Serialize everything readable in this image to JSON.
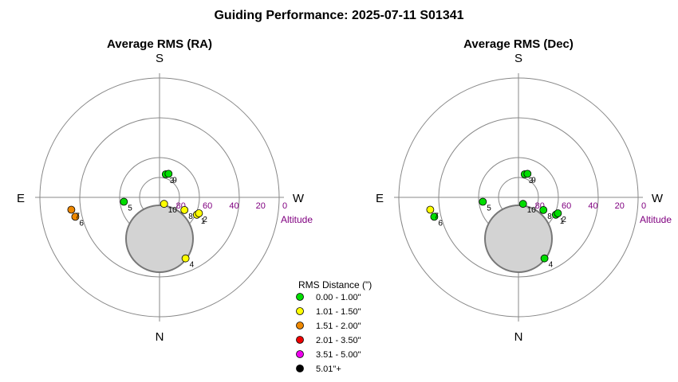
{
  "title": "Guiding Performance: 2025-07-11 S01341",
  "directions": {
    "south": "S",
    "north": "N",
    "east": "E",
    "west": "W"
  },
  "altitude_label": "Altitude",
  "altitude_ticks": [
    "80",
    "60",
    "40",
    "20",
    "0"
  ],
  "legend": {
    "title": "RMS Distance (\")",
    "entries": [
      {
        "label": "0.00 - 1.00\"",
        "color": "#00dd00"
      },
      {
        "label": "1.01 - 1.50\"",
        "color": "#ffff00"
      },
      {
        "label": "1.51 - 2.00\"",
        "color": "#ee8800"
      },
      {
        "label": "2.01 - 3.50\"",
        "color": "#ee0000"
      },
      {
        "label": "3.51 - 5.00\"",
        "color": "#ee00ee"
      },
      {
        "label": "5.01\"+",
        "color": "#000000"
      }
    ]
  },
  "chart_data": [
    {
      "type": "scatter",
      "title": "Average RMS (RA)",
      "coordinate_system": "polar (azimuth, altitude)",
      "radial_axis": {
        "label": "Altitude",
        "range": [
          90,
          0
        ],
        "ticks": [
          80,
          60,
          40,
          20,
          0
        ]
      },
      "points": [
        {
          "label": "1",
          "alt": 59,
          "az": 245,
          "color": "#ffff00"
        },
        {
          "label": "2",
          "alt": 58,
          "az": 248,
          "color": "#ffff00"
        },
        {
          "label": "3",
          "alt": 72,
          "az": 345,
          "color": "#00dd00"
        },
        {
          "label": "4",
          "alt": 40,
          "az": 203,
          "color": "#ffff00"
        },
        {
          "label": "5",
          "alt": 63,
          "az": 97,
          "color": "#00dd00"
        },
        {
          "label": "6",
          "alt": 25,
          "az": 103,
          "color": "#ee8800"
        },
        {
          "label": "7",
          "alt": 23,
          "az": 98,
          "color": "#ee8800"
        },
        {
          "label": "8",
          "alt": 69,
          "az": 243,
          "color": "#ffff00"
        },
        {
          "label": "9",
          "alt": 71,
          "az": 339,
          "color": "#00dd00"
        },
        {
          "label": "10",
          "alt": 84,
          "az": 215,
          "color": "#ffff00"
        }
      ]
    },
    {
      "type": "scatter",
      "title": "Average RMS (Dec)",
      "coordinate_system": "polar (azimuth, altitude)",
      "radial_axis": {
        "label": "Altitude",
        "range": [
          90,
          0
        ],
        "ticks": [
          80,
          60,
          40,
          20,
          0
        ]
      },
      "points": [
        {
          "label": "1",
          "alt": 59,
          "az": 245,
          "color": "#00dd00"
        },
        {
          "label": "2",
          "alt": 58,
          "az": 248,
          "color": "#00dd00"
        },
        {
          "label": "3",
          "alt": 72,
          "az": 345,
          "color": "#00dd00"
        },
        {
          "label": "4",
          "alt": 40,
          "az": 203,
          "color": "#00dd00"
        },
        {
          "label": "5",
          "alt": 63,
          "az": 97,
          "color": "#00dd00"
        },
        {
          "label": "6",
          "alt": 25,
          "az": 103,
          "color": "#00dd00"
        },
        {
          "label": "7",
          "alt": 23,
          "az": 98,
          "color": "#ffff00"
        },
        {
          "label": "8",
          "alt": 69,
          "az": 243,
          "color": "#00dd00"
        },
        {
          "label": "9",
          "alt": 71,
          "az": 339,
          "color": "#00dd00"
        },
        {
          "label": "10",
          "alt": 84,
          "az": 215,
          "color": "#00dd00"
        }
      ]
    }
  ]
}
